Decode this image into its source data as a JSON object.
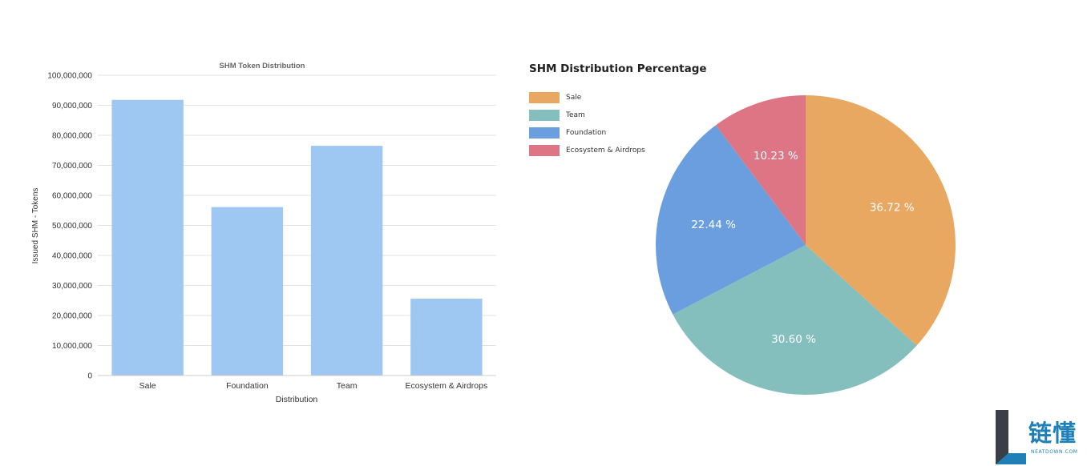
{
  "chart_data": [
    {
      "type": "bar",
      "title": "SHM Token Distribution",
      "xlabel": "Distribution",
      "ylabel": "Issued SHM - Tokens",
      "categories": [
        "Sale",
        "Foundation",
        "Team",
        "Ecosystem & Airdrops"
      ],
      "values": [
        91800000,
        56100000,
        76500000,
        25600000
      ],
      "ylim": [
        0,
        100000000
      ],
      "yticks": [
        "0",
        "10,000,000",
        "20,000,000",
        "30,000,000",
        "40,000,000",
        "50,000,000",
        "60,000,000",
        "70,000,000",
        "80,000,000",
        "90,000,000",
        "100,000,000"
      ],
      "grid": true,
      "color": "#9ec8f2"
    },
    {
      "type": "pie",
      "title": "SHM Distribution Percentage",
      "legend_position": "top-left",
      "slices": [
        {
          "label": "Sale",
          "value": 36.72,
          "text": "36.72 %",
          "color": "#e8a862"
        },
        {
          "label": "Team",
          "value": 30.6,
          "text": "30.60 %",
          "color": "#84bfbd"
        },
        {
          "label": "Foundation",
          "value": 22.44,
          "text": "22.44 %",
          "color": "#6a9ede"
        },
        {
          "label": "Ecosystem & Airdrops",
          "value": 10.23,
          "text": "10.23 %",
          "color": "#de7585"
        }
      ]
    }
  ],
  "logo": {
    "text": "链懂",
    "url": "NEATDOWN.COM"
  }
}
